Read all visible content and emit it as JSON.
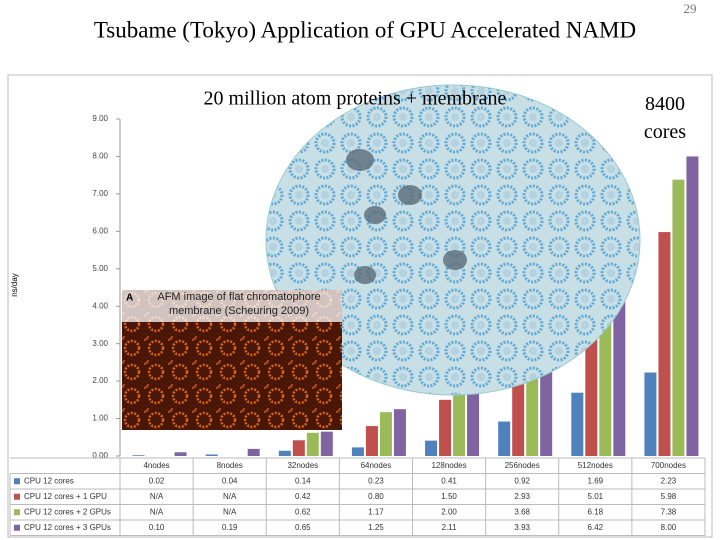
{
  "page_number": "29",
  "slide_title": "Tsubame (Tokyo) Application of GPU Accelerated NAMD",
  "chart_data": {
    "type": "bar",
    "subtitle": "20 million atom proteins + membrane",
    "annotation": "8400 cores",
    "inset_letter": "A",
    "inset_caption": "AFM image of flat chromatophore membrane (Scheuring 2009)",
    "y_label": "ns/day",
    "categories": [
      "4nodes",
      "8nodes",
      "32nodes",
      "64nodes",
      "128nodes",
      "256nodes",
      "512nodes",
      "700nodes"
    ],
    "ylim": [
      0,
      9
    ],
    "yticks": [
      {
        "value": 0,
        "label": "0.00"
      },
      {
        "value": 1,
        "label": "1.00"
      },
      {
        "value": 2,
        "label": "2.00"
      },
      {
        "value": 3,
        "label": "3.00"
      },
      {
        "value": 4,
        "label": "4.00"
      },
      {
        "value": 5,
        "label": "5.00"
      },
      {
        "value": 6,
        "label": "6.00"
      },
      {
        "value": 7,
        "label": "7.00"
      },
      {
        "value": 8,
        "label": "8.00"
      },
      {
        "value": 9,
        "label": "9.00"
      }
    ],
    "series": [
      {
        "name": "CPU 12 cores",
        "color": "#4f81bd",
        "values": [
          0.02,
          0.04,
          0.14,
          0.23,
          0.41,
          0.92,
          1.69,
          2.23
        ],
        "value_labels": [
          "0.02",
          "0.04",
          "0.14",
          "0.23",
          "0.41",
          "0.92",
          "1.69",
          "2.23"
        ]
      },
      {
        "name": "CPU 12 cores + 1 GPU",
        "color": "#c0504d",
        "values": [
          null,
          null,
          0.42,
          0.8,
          1.5,
          2.93,
          5.01,
          5.98
        ],
        "value_labels": [
          "N/A",
          "N/A",
          "0.42",
          "0.80",
          "1.50",
          "2.93",
          "5.01",
          "5.98"
        ]
      },
      {
        "name": "CPU 12 cores + 2 GPUs",
        "color": "#9bbb59",
        "values": [
          null,
          null,
          0.62,
          1.17,
          2.0,
          3.68,
          6.18,
          7.38
        ],
        "value_labels": [
          "N/A",
          "N/A",
          "0.62",
          "1.17",
          "2.00",
          "3.68",
          "6.18",
          "7.38"
        ]
      },
      {
        "name": "CPU 12 cores + 3 GPUs",
        "color": "#8064a2",
        "values": [
          0.1,
          0.19,
          0.65,
          1.25,
          2.11,
          3.93,
          6.42,
          8.0
        ],
        "value_labels": [
          "0.10",
          "0.19",
          "0.65",
          "1.25",
          "2.11",
          "3.93",
          "6.42",
          "8.00"
        ]
      }
    ]
  }
}
